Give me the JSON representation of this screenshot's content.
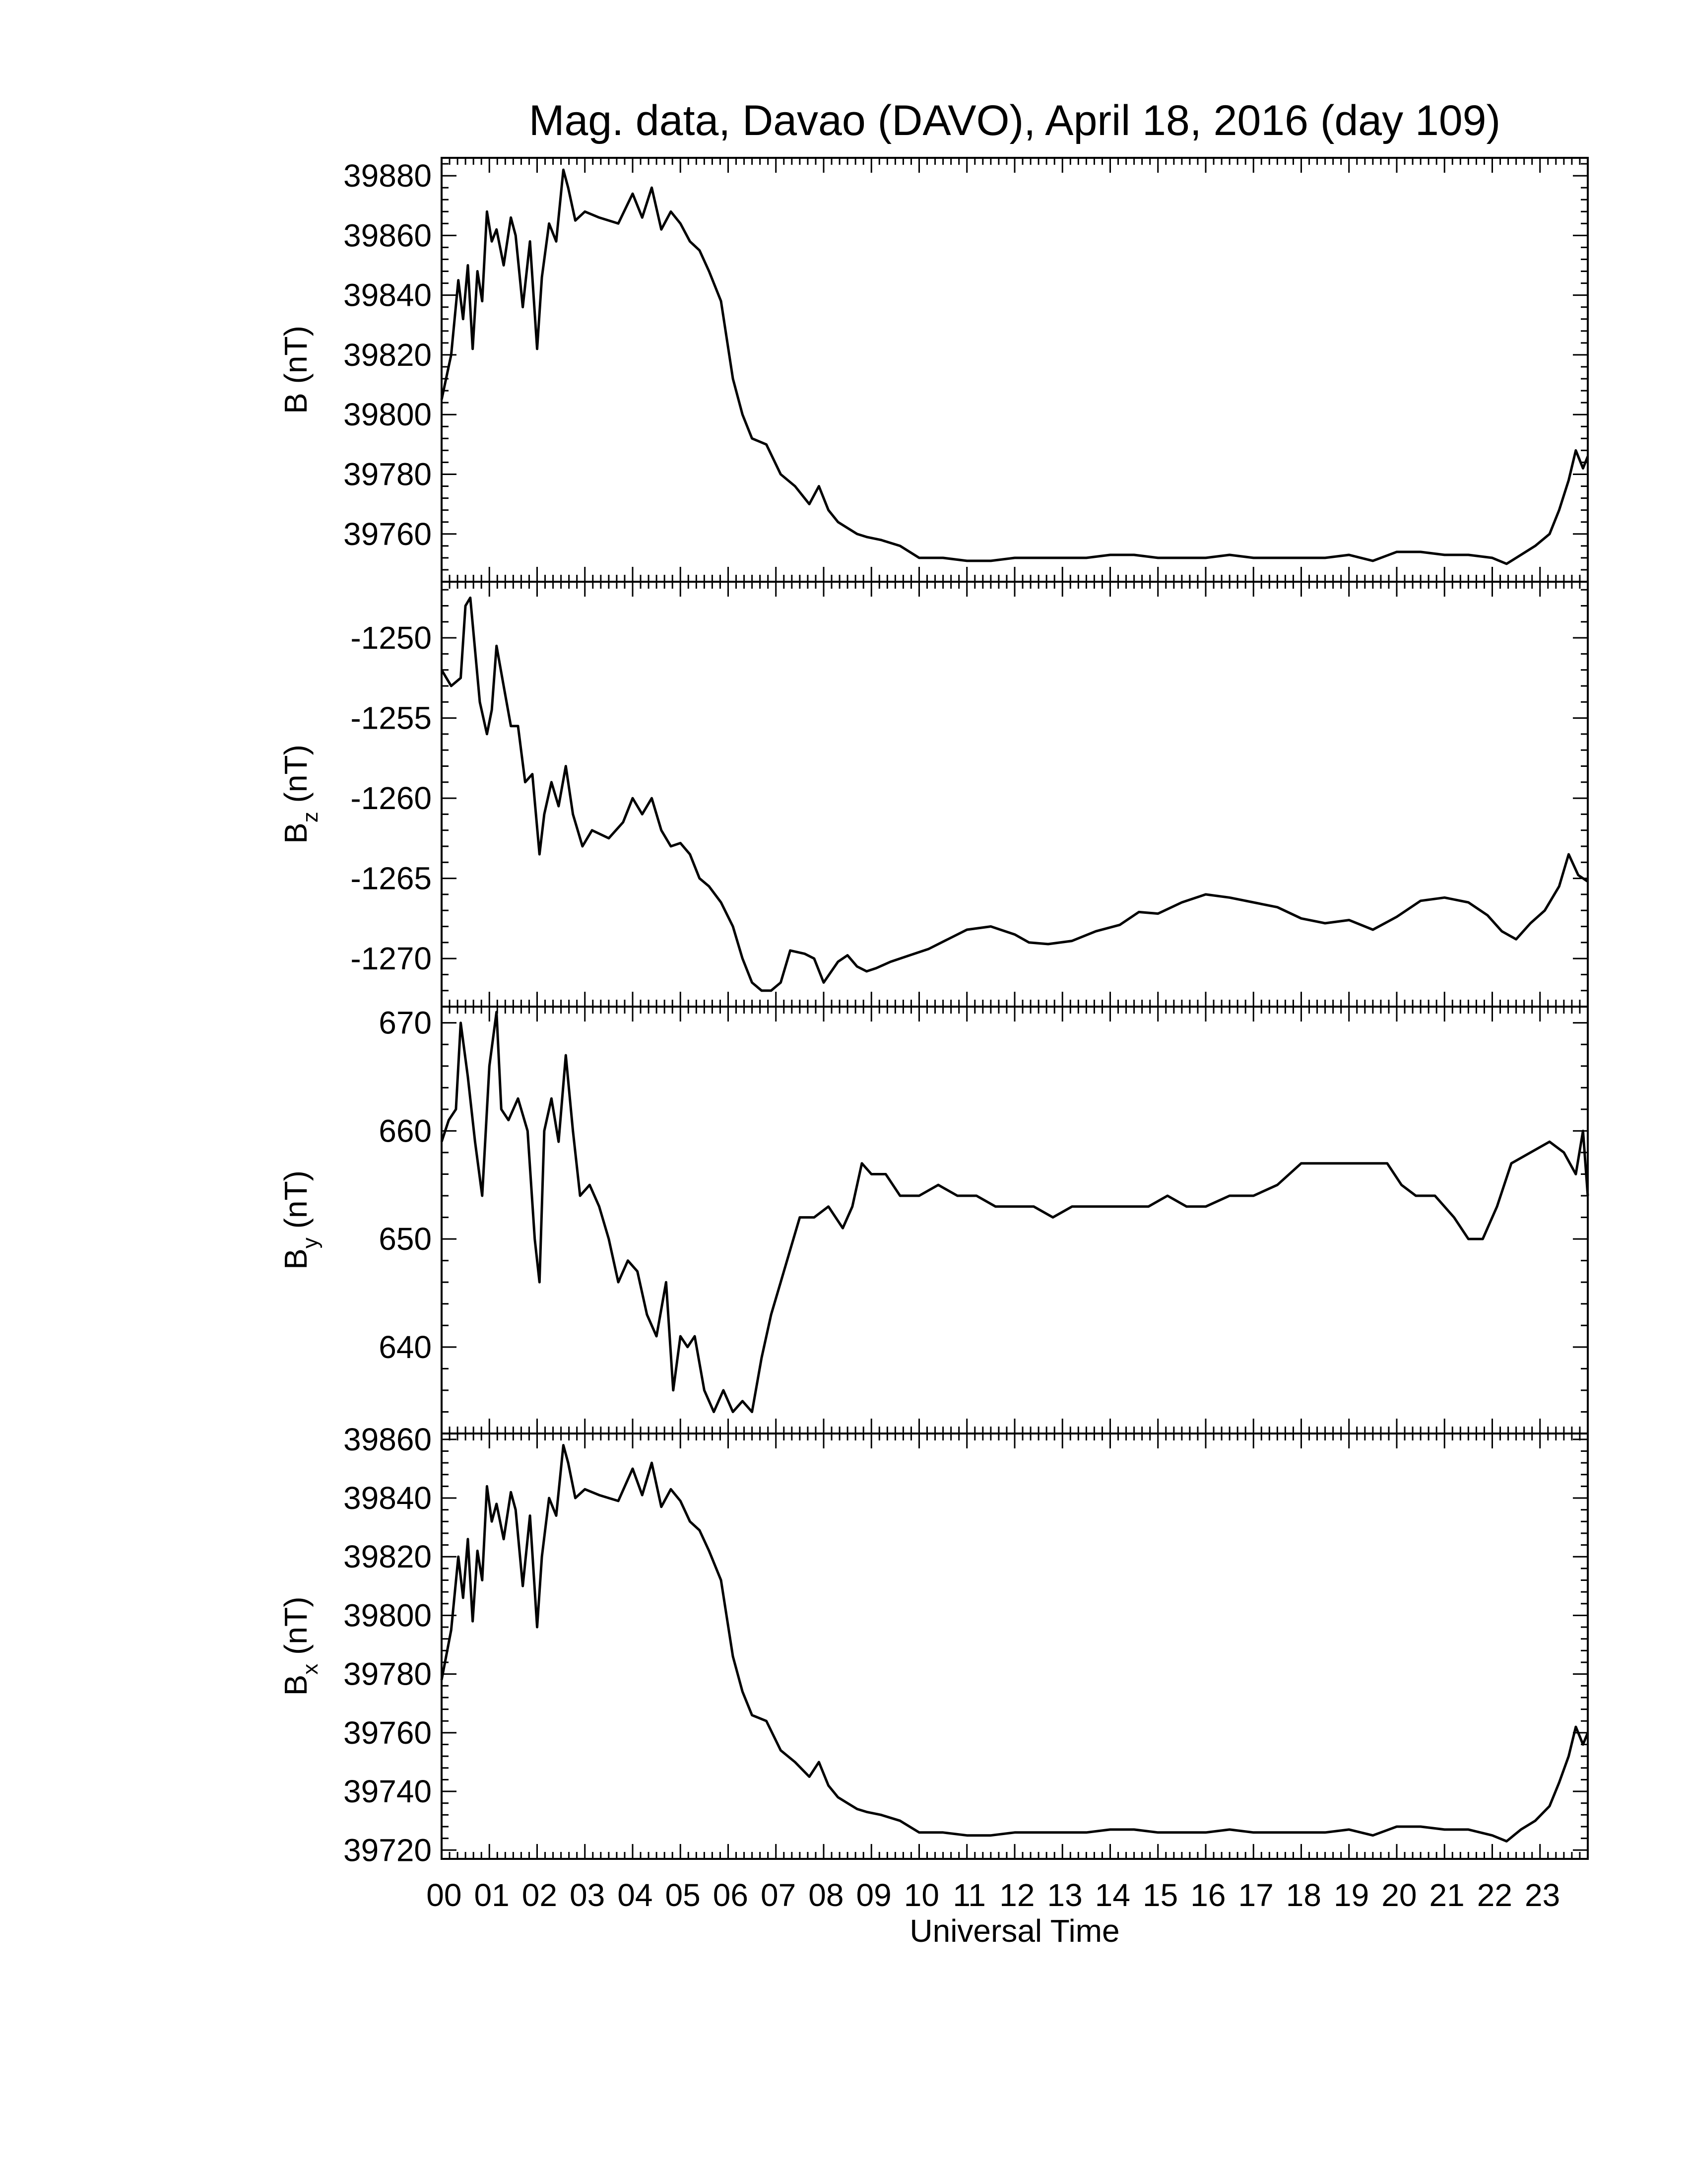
{
  "chart_data": {
    "type": "line",
    "title": "Mag. data, Davao (DAVO), April 18, 2016 (day 109)",
    "xlabel": "Universal Time",
    "xlim": [
      0,
      24
    ],
    "x_tick_labels": [
      "00",
      "01",
      "02",
      "03",
      "04",
      "05",
      "06",
      "07",
      "08",
      "09",
      "10",
      "11",
      "12",
      "13",
      "14",
      "15",
      "16",
      "17",
      "18",
      "19",
      "20",
      "21",
      "22",
      "23"
    ],
    "panels": [
      {
        "ylabel": "B (nT)",
        "ylim": [
          39744,
          39886
        ],
        "yticks": [
          39760,
          39780,
          39800,
          39820,
          39840,
          39860,
          39880
        ],
        "x": [
          0,
          0.2,
          0.35,
          0.45,
          0.55,
          0.65,
          0.75,
          0.85,
          0.95,
          1.05,
          1.15,
          1.3,
          1.45,
          1.55,
          1.7,
          1.85,
          2.0,
          2.1,
          2.25,
          2.4,
          2.55,
          2.65,
          2.8,
          3.0,
          3.3,
          3.7,
          4.0,
          4.2,
          4.4,
          4.6,
          4.8,
          5.0,
          5.2,
          5.4,
          5.6,
          5.85,
          6.1,
          6.3,
          6.5,
          6.8,
          7.1,
          7.4,
          7.7,
          7.9,
          8.1,
          8.3,
          8.5,
          8.7,
          8.9,
          9.2,
          9.6,
          10.0,
          10.5,
          11.0,
          11.5,
          12.0,
          12.5,
          13.0,
          13.5,
          14.0,
          14.5,
          15.0,
          15.5,
          16.0,
          16.5,
          17.0,
          17.5,
          18.0,
          18.5,
          19.0,
          19.5,
          20.0,
          20.5,
          21.0,
          21.5,
          22.0,
          22.3,
          22.6,
          22.9,
          23.2,
          23.4,
          23.6,
          23.75,
          23.9,
          24.0
        ],
        "y": [
          39805,
          39820,
          39845,
          39832,
          39850,
          39822,
          39848,
          39838,
          39868,
          39858,
          39862,
          39850,
          39866,
          39860,
          39836,
          39858,
          39822,
          39846,
          39864,
          39858,
          39882,
          39876,
          39865,
          39868,
          39866,
          39864,
          39874,
          39866,
          39876,
          39862,
          39868,
          39864,
          39858,
          39855,
          39848,
          39838,
          39812,
          39800,
          39792,
          39790,
          39780,
          39776,
          39770,
          39776,
          39768,
          39764,
          39762,
          39760,
          39759,
          39758,
          39756,
          39752,
          39752,
          39751,
          39751,
          39752,
          39752,
          39752,
          39752,
          39753,
          39753,
          39752,
          39752,
          39752,
          39753,
          39752,
          39752,
          39752,
          39752,
          39753,
          39751,
          39754,
          39754,
          39753,
          39753,
          39752,
          39750,
          39753,
          39756,
          39760,
          39768,
          39778,
          39788,
          39782,
          39786
        ]
      },
      {
        "ylabel": "B",
        "ylabel_sub": "z",
        "ylabel_unit": " (nT)",
        "ylim": [
          -1273,
          -1246.5
        ],
        "yticks": [
          -1270,
          -1265,
          -1260,
          -1255,
          -1250
        ],
        "x": [
          0,
          0.2,
          0.4,
          0.5,
          0.6,
          0.8,
          0.95,
          1.05,
          1.15,
          1.3,
          1.45,
          1.6,
          1.75,
          1.9,
          2.05,
          2.15,
          2.3,
          2.45,
          2.6,
          2.75,
          2.95,
          3.15,
          3.5,
          3.8,
          4.0,
          4.2,
          4.4,
          4.6,
          4.8,
          5.0,
          5.2,
          5.4,
          5.6,
          5.85,
          6.1,
          6.3,
          6.5,
          6.7,
          6.9,
          7.1,
          7.3,
          7.6,
          7.8,
          8.0,
          8.3,
          8.5,
          8.7,
          8.9,
          9.1,
          9.4,
          9.8,
          10.2,
          10.6,
          11.0,
          11.5,
          12.0,
          12.3,
          12.7,
          13.2,
          13.7,
          14.2,
          14.6,
          15.0,
          15.5,
          16.0,
          16.5,
          17.0,
          17.5,
          18.0,
          18.5,
          19.0,
          19.5,
          20.0,
          20.5,
          21.0,
          21.5,
          21.9,
          22.2,
          22.5,
          22.8,
          23.1,
          23.4,
          23.6,
          23.8,
          24.0
        ],
        "y": [
          -1252,
          -1253,
          -1252.5,
          -1248,
          -1247.5,
          -1254,
          -1256,
          -1254.5,
          -1250.5,
          -1253,
          -1255.5,
          -1255.5,
          -1259,
          -1258.5,
          -1263.5,
          -1261,
          -1259,
          -1260.5,
          -1258,
          -1261,
          -1263,
          -1262,
          -1262.5,
          -1261.5,
          -1260,
          -1261,
          -1260,
          -1262,
          -1263,
          -1262.8,
          -1263.5,
          -1265,
          -1265.5,
          -1266.5,
          -1268,
          -1270,
          -1271.5,
          -1272,
          -1272,
          -1271.5,
          -1269.5,
          -1269.7,
          -1270,
          -1271.5,
          -1270.2,
          -1269.8,
          -1270.5,
          -1270.8,
          -1270.6,
          -1270.2,
          -1269.8,
          -1269.4,
          -1268.8,
          -1268.2,
          -1268.0,
          -1268.5,
          -1269.0,
          -1269.1,
          -1268.9,
          -1268.3,
          -1267.9,
          -1267.1,
          -1267.2,
          -1266.5,
          -1266.0,
          -1266.2,
          -1266.5,
          -1266.8,
          -1267.5,
          -1267.8,
          -1267.6,
          -1268.2,
          -1267.4,
          -1266.4,
          -1266.2,
          -1266.5,
          -1267.3,
          -1268.3,
          -1268.8,
          -1267.8,
          -1267.0,
          -1265.5,
          -1263.5,
          -1264.8,
          -1265.2
        ]
      },
      {
        "ylabel": "B",
        "ylabel_sub": "y",
        "ylabel_unit": " (nT)",
        "ylim": [
          632,
          671.5
        ],
        "yticks": [
          640,
          650,
          660,
          670
        ],
        "x": [
          0,
          0.15,
          0.3,
          0.4,
          0.55,
          0.7,
          0.85,
          1.0,
          1.15,
          1.25,
          1.4,
          1.6,
          1.8,
          1.95,
          2.05,
          2.15,
          2.3,
          2.45,
          2.6,
          2.75,
          2.9,
          3.1,
          3.3,
          3.5,
          3.7,
          3.9,
          4.1,
          4.3,
          4.5,
          4.7,
          4.85,
          5.0,
          5.15,
          5.3,
          5.5,
          5.7,
          5.9,
          6.1,
          6.3,
          6.5,
          6.7,
          6.9,
          7.1,
          7.3,
          7.5,
          7.8,
          8.1,
          8.4,
          8.6,
          8.8,
          9.0,
          9.3,
          9.6,
          10.0,
          10.4,
          10.8,
          11.2,
          11.6,
          12.0,
          12.4,
          12.8,
          13.2,
          13.6,
          14.0,
          14.4,
          14.8,
          15.2,
          15.6,
          16.0,
          16.5,
          17.0,
          17.5,
          18.0,
          18.5,
          19.0,
          19.4,
          19.8,
          20.1,
          20.4,
          20.8,
          21.2,
          21.5,
          21.8,
          22.1,
          22.4,
          22.8,
          23.2,
          23.5,
          23.75,
          23.9,
          24.0
        ],
        "y": [
          659,
          661,
          662,
          670,
          665,
          659,
          654,
          666,
          671,
          662,
          661,
          663,
          660,
          650,
          646,
          660,
          663,
          659,
          667,
          660,
          654,
          655,
          653,
          650,
          646,
          648,
          647,
          643,
          641,
          646,
          636,
          641,
          640,
          641,
          636,
          634,
          636,
          634,
          635,
          634,
          639,
          643,
          646,
          649,
          652,
          652,
          653,
          651,
          653,
          657,
          656,
          656,
          654,
          654,
          655,
          654,
          654,
          653,
          653,
          653,
          652,
          653,
          653,
          653,
          653,
          653,
          654,
          653,
          653,
          654,
          654,
          655,
          657,
          657,
          657,
          657,
          657,
          655,
          654,
          654,
          652,
          650,
          650,
          653,
          657,
          658,
          659,
          658,
          656,
          660,
          654
        ]
      },
      {
        "ylabel": "B",
        "ylabel_sub": "x",
        "ylabel_unit": " (nT)",
        "ylim": [
          39717,
          39862
        ],
        "yticks": [
          39720,
          39740,
          39760,
          39780,
          39800,
          39820,
          39840,
          39860
        ],
        "x": [
          0,
          0.2,
          0.35,
          0.45,
          0.55,
          0.65,
          0.75,
          0.85,
          0.95,
          1.05,
          1.15,
          1.3,
          1.45,
          1.55,
          1.7,
          1.85,
          2.0,
          2.1,
          2.25,
          2.4,
          2.55,
          2.65,
          2.8,
          3.0,
          3.3,
          3.7,
          4.0,
          4.2,
          4.4,
          4.6,
          4.8,
          5.0,
          5.2,
          5.4,
          5.6,
          5.85,
          6.1,
          6.3,
          6.5,
          6.8,
          7.1,
          7.4,
          7.7,
          7.9,
          8.1,
          8.3,
          8.5,
          8.7,
          8.9,
          9.2,
          9.6,
          10.0,
          10.5,
          11.0,
          11.5,
          12.0,
          12.5,
          13.0,
          13.5,
          14.0,
          14.5,
          15.0,
          15.5,
          16.0,
          16.5,
          17.0,
          17.5,
          18.0,
          18.5,
          19.0,
          19.5,
          20.0,
          20.5,
          21.0,
          21.5,
          22.0,
          22.3,
          22.6,
          22.9,
          23.2,
          23.4,
          23.6,
          23.75,
          23.9,
          24.0
        ],
        "y": [
          39778,
          39795,
          39820,
          39806,
          39826,
          39798,
          39822,
          39812,
          39844,
          39832,
          39838,
          39826,
          39842,
          39836,
          39810,
          39834,
          39796,
          39820,
          39840,
          39834,
          39858,
          39852,
          39840,
          39843,
          39841,
          39839,
          39850,
          39841,
          39852,
          39837,
          39843,
          39839,
          39832,
          39829,
          39822,
          39812,
          39786,
          39774,
          39766,
          39764,
          39754,
          39750,
          39745,
          39750,
          39742,
          39738,
          39736,
          39734,
          39733,
          39732,
          39730,
          39726,
          39726,
          39725,
          39725,
          39726,
          39726,
          39726,
          39726,
          39727,
          39727,
          39726,
          39726,
          39726,
          39727,
          39726,
          39726,
          39726,
          39726,
          39727,
          39725,
          39728,
          39728,
          39727,
          39727,
          39725,
          39723,
          39727,
          39730,
          39735,
          39743,
          39752,
          39762,
          39756,
          39760
        ]
      }
    ]
  }
}
